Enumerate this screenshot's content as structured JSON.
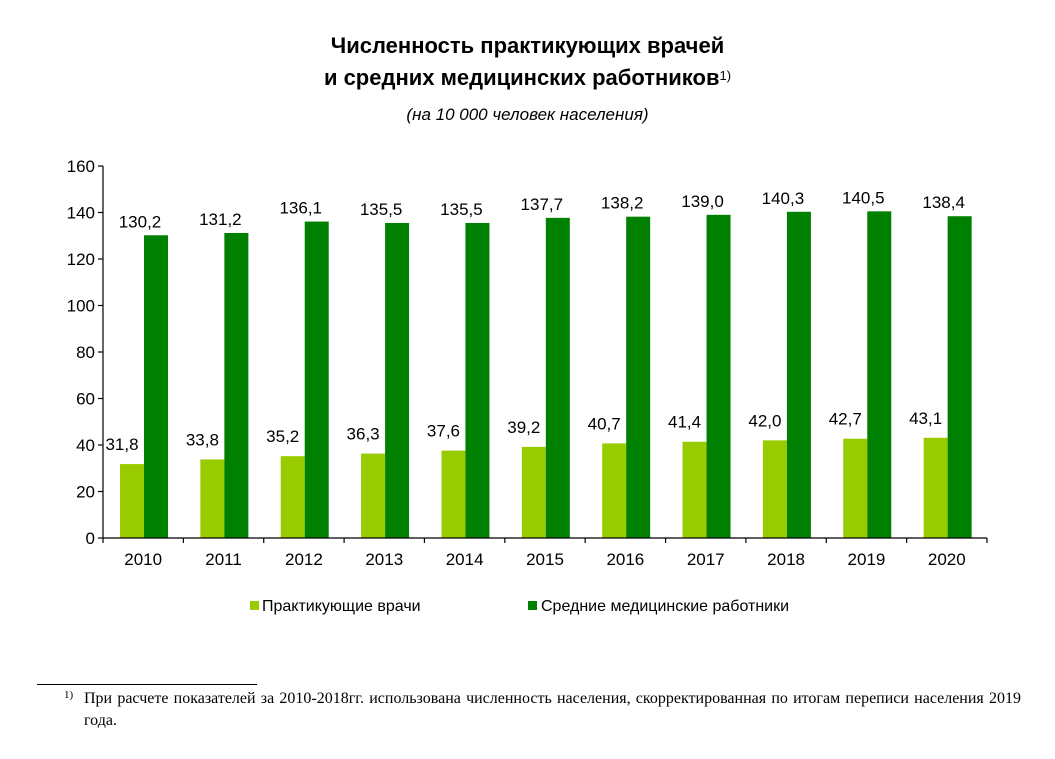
{
  "title": {
    "line1": "Численность практикующих врачей",
    "line2": "и средних медицинских работников",
    "footnote_mark": "1)"
  },
  "subtitle": "(на 10 000 человек населения)",
  "colors": {
    "series1": "#99cc00",
    "series2": "#008000"
  },
  "chart_data": {
    "type": "bar",
    "categories": [
      "2010",
      "2011",
      "2012",
      "2013",
      "2014",
      "2015",
      "2016",
      "2017",
      "2018",
      "2019",
      "2020"
    ],
    "series": [
      {
        "name": "Практикующие врачи",
        "values": [
          31.8,
          33.8,
          35.2,
          36.3,
          37.6,
          39.2,
          40.7,
          41.4,
          42.0,
          42.7,
          43.1
        ],
        "labels": [
          "31,8",
          "33,8",
          "35,2",
          "36,3",
          "37,6",
          "39,2",
          "40,7",
          "41,4",
          "42,0",
          "42,7",
          "43,1"
        ],
        "color": "#99cc00"
      },
      {
        "name": "Средние медицинские работники",
        "values": [
          130.2,
          131.2,
          136.1,
          135.5,
          135.5,
          137.7,
          138.2,
          139.0,
          140.3,
          140.5,
          138.4
        ],
        "labels": [
          "130,2",
          "131,2",
          "136,1",
          "135,5",
          "135,5",
          "137,7",
          "138,2",
          "139,0",
          "140,3",
          "140,5",
          "138,4"
        ],
        "color": "#008000"
      }
    ],
    "y_ticks": [
      "0",
      "20",
      "40",
      "60",
      "80",
      "100",
      "120",
      "140",
      "160"
    ],
    "ylim": [
      0,
      160
    ],
    "grid": false,
    "legend_position": "bottom"
  },
  "footnote": {
    "mark": "1)",
    "text": "При расчете показателей за 2010-2018гг. использована численность населения, скорректированная по итогам переписи населения 2019 года."
  }
}
